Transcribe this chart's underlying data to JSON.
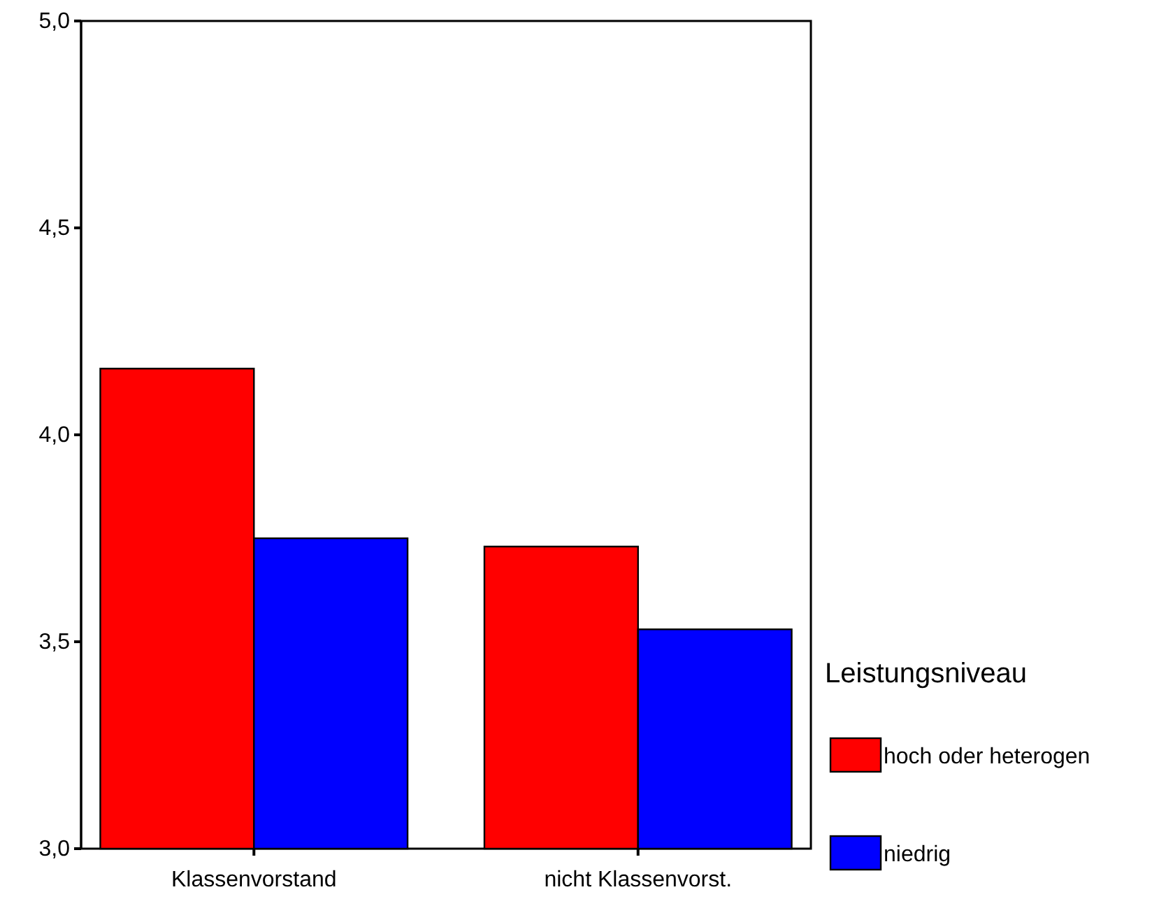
{
  "chart_data": {
    "type": "bar",
    "categories": [
      "Klassenvorstand",
      "nicht Klassenvorst."
    ],
    "series": [
      {
        "name": "hoch oder heterogen",
        "color": "#ff0000",
        "values": [
          4.16,
          3.73
        ]
      },
      {
        "name": "niedrig",
        "color": "#0000ff",
        "values": [
          3.75,
          3.53
        ]
      }
    ],
    "legend_title": "Leistungsniveau",
    "legend": "right",
    "ylim": [
      3,
      5
    ],
    "yticks": [
      {
        "value": 3,
        "label": "3,0"
      },
      {
        "value": 3.5,
        "label": "3,5"
      },
      {
        "value": 4,
        "label": "4,0"
      },
      {
        "value": 4.5,
        "label": "4,5"
      },
      {
        "value": 5,
        "label": "5,0"
      }
    ],
    "grid": false
  }
}
